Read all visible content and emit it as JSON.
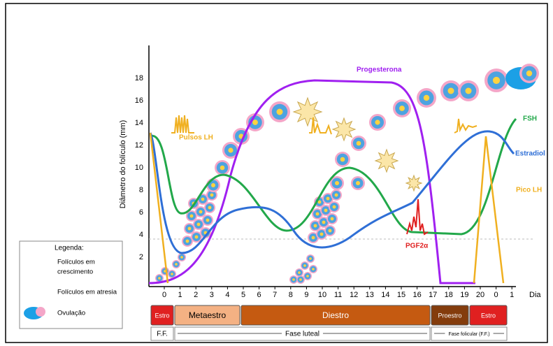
{
  "y_axis": {
    "label": "Diâmetro do folículo (mm)",
    "ticks": [
      "2",
      "4",
      "6",
      "8",
      "10",
      "12",
      "14",
      "16",
      "18"
    ]
  },
  "x_axis": {
    "label": "Dia",
    "ticks": [
      "0",
      "1",
      "2",
      "3",
      "4",
      "5",
      "6",
      "7",
      "8",
      "9",
      "10",
      "11",
      "12",
      "13",
      "14",
      "15",
      "16",
      "17",
      "18",
      "19",
      "20",
      "0",
      "1"
    ]
  },
  "curves": {
    "progesterone": "Progesterona",
    "fsh": "FSH",
    "estradiol": "Estradiol",
    "lh_peak": "Pico LH",
    "lh_pulses": "Pulsos LH",
    "pgf": "PGF2α"
  },
  "legend": {
    "title": "Legenda:",
    "items": [
      {
        "label": [
          "Folículos em",
          "crescimento"
        ]
      },
      {
        "label": [
          "Folículos em atresia"
        ]
      },
      {
        "label": [
          "Ovulação"
        ]
      }
    ]
  },
  "phases": {
    "bars": [
      "Estro",
      "Metaestro",
      "Diestro",
      "Proestro",
      "Estro"
    ],
    "groups": [
      "F.F.",
      "Fase luteal",
      "Fase folicular (F.F.)"
    ]
  }
}
